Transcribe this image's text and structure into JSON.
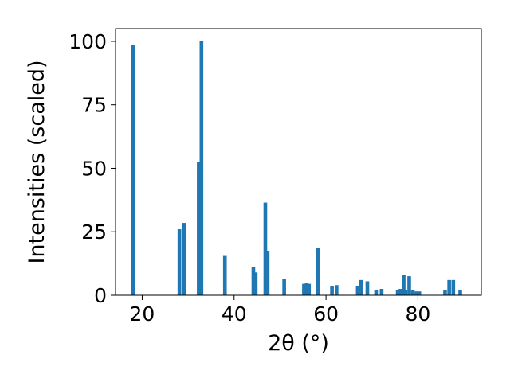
{
  "chart_data": {
    "type": "bar",
    "xlabel": "2θ (°)",
    "ylabel": "Intensities (scaled)",
    "xlim": [
      14.2,
      93.8
    ],
    "ylim": [
      0,
      105
    ],
    "xticks": [
      20,
      40,
      60,
      80
    ],
    "yticks": [
      0,
      25,
      50,
      75,
      100
    ],
    "xtick_labels": [
      "20",
      "40",
      "60",
      "80"
    ],
    "ytick_labels": [
      "0",
      "25",
      "50",
      "75",
      "100"
    ],
    "bar_width_deg": 0.8,
    "bar_color": "#1f77b4",
    "grid": false,
    "legend": "none",
    "x": [
      18.0,
      28.1,
      29.1,
      32.3,
      32.9,
      38.0,
      44.2,
      44.7,
      46.8,
      47.3,
      50.9,
      55.2,
      55.8,
      56.3,
      58.3,
      61.3,
      62.3,
      66.9,
      67.6,
      69.0,
      70.9,
      72.1,
      75.6,
      76.2,
      76.9,
      77.3,
      78.1,
      78.9,
      79.7,
      80.3,
      85.9,
      86.8,
      87.7,
      89.2
    ],
    "y": [
      98.5,
      26.0,
      28.5,
      52.5,
      100.0,
      15.5,
      11.0,
      9.0,
      36.5,
      17.5,
      6.5,
      4.5,
      5.0,
      4.5,
      18.5,
      3.5,
      4.0,
      3.5,
      6.0,
      5.5,
      2.0,
      2.5,
      2.0,
      2.5,
      8.0,
      2.0,
      7.5,
      2.0,
      1.5,
      1.5,
      2.0,
      6.0,
      6.0,
      2.0
    ]
  }
}
